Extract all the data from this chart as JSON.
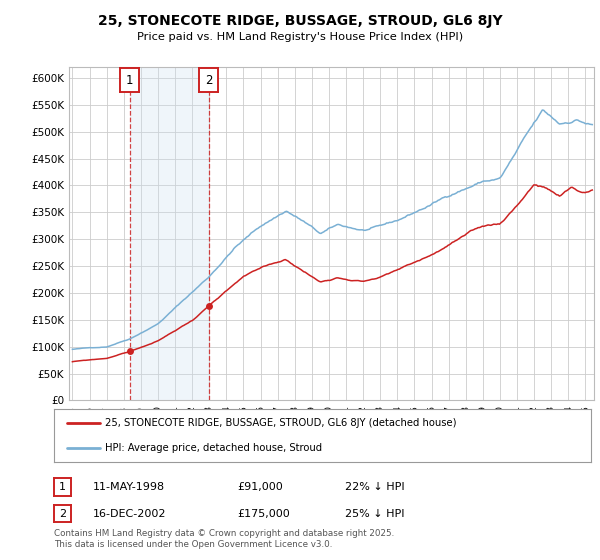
{
  "title": "25, STONECOTE RIDGE, BUSSAGE, STROUD, GL6 8JY",
  "subtitle": "Price paid vs. HM Land Registry's House Price Index (HPI)",
  "hpi_color": "#7ab0d4",
  "price_color": "#cc2222",
  "vline_color": "#cc2222",
  "shade_color": "#cce0f0",
  "background_color": "#ffffff",
  "grid_color": "#cccccc",
  "ylim": [
    0,
    620000
  ],
  "yticks": [
    0,
    50000,
    100000,
    150000,
    200000,
    250000,
    300000,
    350000,
    400000,
    450000,
    500000,
    550000,
    600000
  ],
  "purchase1": {
    "date_num": 1998.36,
    "price": 91000,
    "label": "1",
    "date_str": "11-MAY-1998",
    "discount": "22% ↓ HPI"
  },
  "purchase2": {
    "date_num": 2002.96,
    "price": 175000,
    "label": "2",
    "date_str": "16-DEC-2002",
    "discount": "25% ↓ HPI"
  },
  "legend_entry1": "25, STONECOTE RIDGE, BUSSAGE, STROUD, GL6 8JY (detached house)",
  "legend_entry2": "HPI: Average price, detached house, Stroud",
  "table_rows": [
    {
      "num": "1",
      "date": "11-MAY-1998",
      "price": "£91,000",
      "info": "22% ↓ HPI"
    },
    {
      "num": "2",
      "date": "16-DEC-2002",
      "price": "£175,000",
      "info": "25% ↓ HPI"
    }
  ],
  "footnote": "Contains HM Land Registry data © Crown copyright and database right 2025.\nThis data is licensed under the Open Government Licence v3.0.",
  "xlim": [
    1994.8,
    2025.5
  ]
}
